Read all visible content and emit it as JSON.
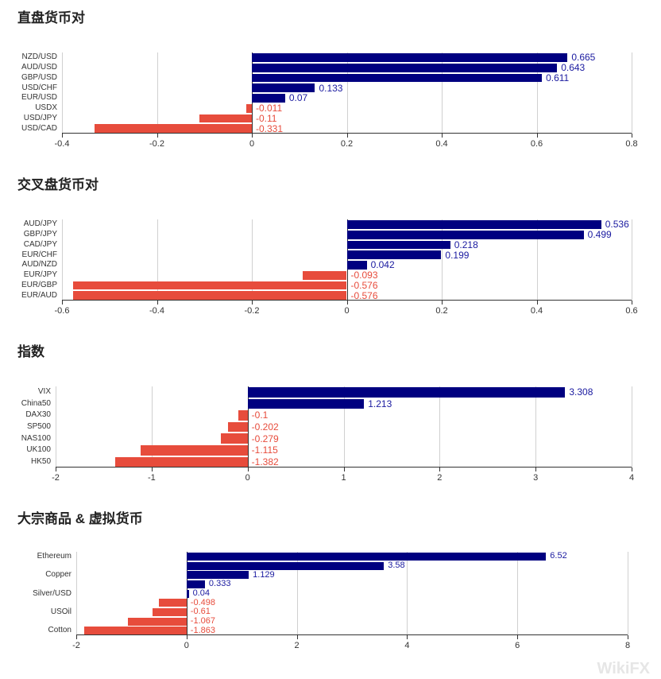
{
  "colors": {
    "positive": "#000080",
    "negative": "#e74c3c",
    "positive_label": "#1a1aa0",
    "negative_label": "#e74c3c"
  },
  "watermark": "WikiFX",
  "chart_data": [
    {
      "type": "bar",
      "orientation": "horizontal",
      "title": "直盘货币对",
      "categories": [
        "NZD/USD",
        "AUD/USD",
        "GBP/USD",
        "USD/CHF",
        "EUR/USD",
        "USDX",
        "USD/JPY",
        "USD/CAD"
      ],
      "values": [
        0.665,
        0.643,
        0.611,
        0.133,
        0.07,
        -0.011,
        -0.11,
        -0.331
      ],
      "xlim": [
        -0.4,
        0.8
      ],
      "xticks": [
        "-0.4",
        "-0.2",
        "0",
        "0.2",
        "0.4",
        "0.6",
        "0.8"
      ],
      "grid": true
    },
    {
      "type": "bar",
      "orientation": "horizontal",
      "title": "交叉盘货币对",
      "categories": [
        "AUD/JPY",
        "GBP/JPY",
        "CAD/JPY",
        "EUR/CHF",
        "AUD/NZD",
        "EUR/JPY",
        "EUR/GBP",
        "EUR/AUD"
      ],
      "values": [
        0.536,
        0.499,
        0.218,
        0.199,
        0.042,
        -0.093,
        -0.576,
        -0.576
      ],
      "xlim": [
        -0.6,
        0.6
      ],
      "xticks": [
        "-0.6",
        "-0.4",
        "-0.2",
        "0",
        "0.2",
        "0.4",
        "0.6"
      ],
      "grid": true
    },
    {
      "type": "bar",
      "orientation": "horizontal",
      "title": "指数",
      "categories": [
        "VIX",
        "China50",
        "DAX30",
        "SP500",
        "NAS100",
        "UK100",
        "HK50"
      ],
      "values": [
        3.308,
        1.213,
        -0.1,
        -0.202,
        -0.279,
        -1.115,
        -1.382
      ],
      "xlim": [
        -2,
        4
      ],
      "xticks": [
        "-2",
        "-1",
        "0",
        "1",
        "2",
        "3",
        "4"
      ],
      "grid": true
    },
    {
      "type": "bar",
      "orientation": "horizontal",
      "title": "大宗商品 & 虚拟货币",
      "categories": [
        "Ethereum",
        "",
        "Copper",
        "",
        "Silver/USD",
        "",
        "USOil",
        "",
        "Cotton"
      ],
      "values": [
        6.52,
        3.58,
        1.129,
        0.333,
        0.04,
        -0.498,
        -0.61,
        -1.067,
        -1.863
      ],
      "xlim": [
        -2,
        8
      ],
      "xticks": [
        "-2",
        "0",
        "2",
        "4",
        "6",
        "8"
      ],
      "grid": true
    }
  ]
}
